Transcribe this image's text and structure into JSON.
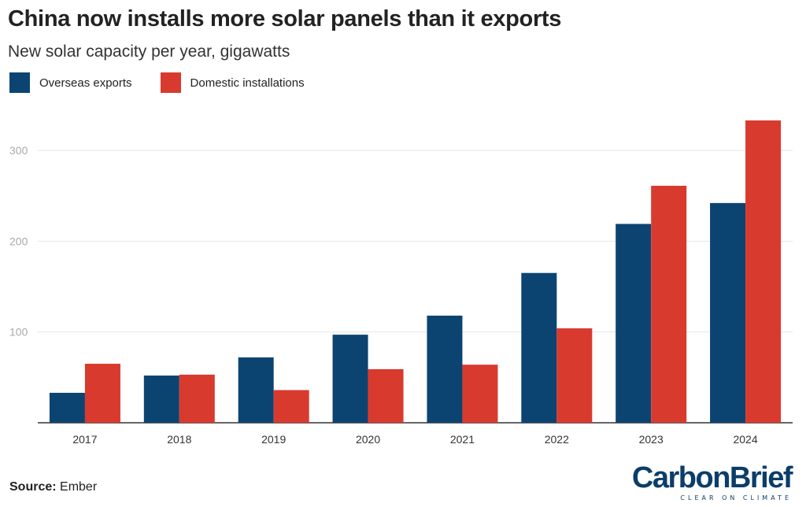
{
  "header": {
    "title": "China now installs more solar panels than it exports",
    "subtitle": "New solar capacity per year, gigawatts"
  },
  "footer": {
    "source_label": "Source:",
    "source_value": "Ember",
    "logo_text": "CarbonBrief",
    "logo_tagline": "CLEAR ON CLIMATE"
  },
  "colors": {
    "exports": "#0c4471",
    "domestic": "#d93a2e",
    "grid": "#e6e6e6",
    "axis": "#333333",
    "tick_label": "#aaaaaa"
  },
  "chart_data": {
    "type": "bar",
    "title": "China now installs more solar panels than it exports",
    "subtitle": "New solar capacity per year, gigawatts",
    "categories": [
      "2017",
      "2018",
      "2019",
      "2020",
      "2021",
      "2022",
      "2023",
      "2024"
    ],
    "series": [
      {
        "name": "Overseas exports",
        "values": [
          33,
          52,
          72,
          97,
          118,
          165,
          219,
          242
        ]
      },
      {
        "name": "Domestic installations",
        "values": [
          65,
          53,
          36,
          59,
          64,
          104,
          261,
          333
        ]
      }
    ],
    "ylim": [
      0,
      340
    ],
    "yticks": [
      100,
      200,
      300
    ],
    "grid": true,
    "legend": "top-left"
  }
}
